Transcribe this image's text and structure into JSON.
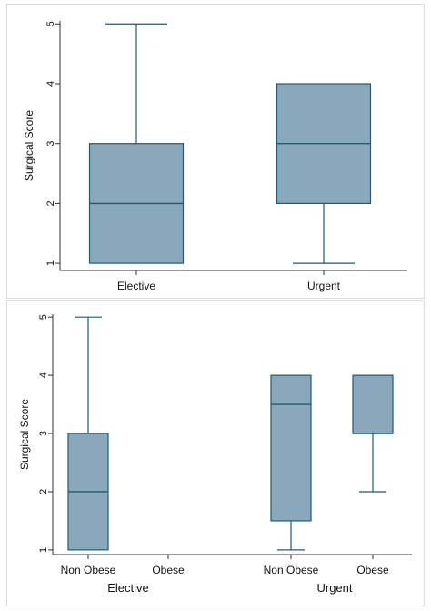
{
  "chart_data": [
    {
      "type": "box",
      "title": "",
      "ylabel": "Surgical Score",
      "xlabel": "",
      "ylim": [
        0.88,
        5.05
      ],
      "yticks": [
        1,
        2,
        3,
        4,
        5
      ],
      "grid": false,
      "colors": {
        "box_fill": "#8aa8bc",
        "box_stroke": "#1f5b73",
        "axis": "#333333"
      },
      "categories": [
        "Elective",
        "Urgent"
      ],
      "boxes": [
        {
          "category": "Elective",
          "min": 1,
          "q1": 1,
          "median": 2,
          "q3": 3,
          "max": 5
        },
        {
          "category": "Urgent",
          "min": 1,
          "q1": 2,
          "median": 3,
          "q3": 4,
          "max": 4
        }
      ]
    },
    {
      "type": "box",
      "title": "",
      "ylabel": "Surgical Score",
      "xlabel": "",
      "ylim": [
        0.92,
        5.05
      ],
      "yticks": [
        1,
        2,
        3,
        4,
        5
      ],
      "grid": false,
      "colors": {
        "box_fill": "#8aa8bc",
        "box_stroke": "#1f5b73",
        "axis": "#333333"
      },
      "groups": [
        {
          "label": "Elective",
          "subcategories": [
            "Non Obese",
            "Obese"
          ]
        },
        {
          "label": "Urgent",
          "subcategories": [
            "Non Obese",
            "Obese"
          ]
        }
      ],
      "boxes": [
        {
          "group": "Elective",
          "category": "Non Obese",
          "min": 1,
          "q1": 1,
          "median": 2,
          "q3": 3,
          "max": 5
        },
        {
          "group": "Elective",
          "category": "Obese",
          "min": null,
          "q1": null,
          "median": null,
          "q3": null,
          "max": null
        },
        {
          "group": "Urgent",
          "category": "Non Obese",
          "min": 1,
          "q1": 1.5,
          "median": 3.5,
          "q3": 4,
          "max": 4
        },
        {
          "group": "Urgent",
          "category": "Obese",
          "min": 2,
          "q1": 3,
          "median": 3,
          "q3": 4,
          "max": 4
        }
      ]
    }
  ]
}
